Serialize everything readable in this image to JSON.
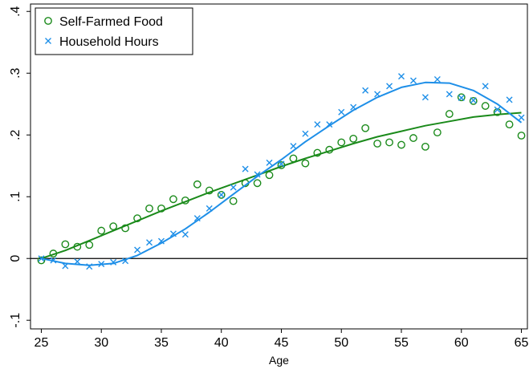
{
  "chart_data": {
    "type": "scatter",
    "x_label": "Age",
    "x": [
      25,
      26,
      27,
      28,
      29,
      30,
      31,
      32,
      33,
      34,
      35,
      36,
      37,
      38,
      39,
      40,
      41,
      42,
      43,
      44,
      45,
      46,
      47,
      48,
      49,
      50,
      51,
      52,
      53,
      54,
      55,
      56,
      57,
      58,
      59,
      60,
      61,
      62,
      63,
      64,
      65
    ],
    "fit_x": [
      25,
      27,
      29,
      31,
      33,
      35,
      37,
      39,
      41,
      43,
      45,
      47,
      49,
      51,
      53,
      55,
      57,
      59,
      61,
      63,
      65
    ],
    "series": [
      {
        "name": "Self-Farmed Food",
        "color": "#1a8a1a",
        "marker": "circle",
        "values": [
          -0.003,
          0.008,
          0.023,
          0.019,
          0.022,
          0.045,
          0.052,
          0.049,
          0.065,
          0.081,
          0.081,
          0.096,
          0.094,
          0.12,
          0.11,
          0.103,
          0.093,
          0.122,
          0.122,
          0.135,
          0.151,
          0.162,
          0.154,
          0.171,
          0.176,
          0.188,
          0.194,
          0.211,
          0.186,
          0.188,
          0.184,
          0.195,
          0.181,
          0.204,
          0.234,
          0.261,
          0.255,
          0.247,
          0.237,
          0.217,
          0.199
        ],
        "fit": [
          0,
          0.013,
          0.029,
          0.045,
          0.061,
          0.077,
          0.092,
          0.107,
          0.121,
          0.135,
          0.149,
          0.162,
          0.174,
          0.186,
          0.197,
          0.206,
          0.215,
          0.222,
          0.229,
          0.233,
          0.236
        ]
      },
      {
        "name": "Household Hours",
        "color": "#1e8fe8",
        "marker": "x",
        "values": [
          0,
          -0.003,
          -0.012,
          -0.005,
          -0.013,
          -0.009,
          -0.006,
          -0.004,
          0.014,
          0.026,
          0.028,
          0.04,
          0.039,
          0.065,
          0.081,
          0.103,
          0.115,
          0.145,
          0.136,
          0.155,
          0.153,
          0.182,
          0.202,
          0.217,
          0.217,
          0.237,
          0.245,
          0.272,
          0.266,
          0.279,
          0.295,
          0.288,
          0.261,
          0.29,
          0.266,
          0.26,
          0.256,
          0.279,
          0.241,
          0.257,
          0.228
        ],
        "fit": [
          0,
          -0.008,
          -0.011,
          -0.008,
          0.005,
          0.025,
          0.048,
          0.075,
          0.104,
          0.133,
          0.16,
          0.189,
          0.215,
          0.24,
          0.261,
          0.277,
          0.285,
          0.284,
          0.272,
          0.25,
          0.22
        ]
      }
    ],
    "xlim": [
      24.1,
      65.5
    ],
    "xticks": [
      25,
      30,
      35,
      40,
      45,
      50,
      55,
      60,
      65
    ],
    "ylim": [
      -0.114,
      0.412
    ],
    "yticks": [
      {
        "value": -0.1,
        "label": "-.1"
      },
      0,
      {
        "value": 0.1,
        "label": ".1"
      },
      {
        "value": 0.2,
        "label": ".2"
      },
      {
        "value": 0.3,
        "label": ".3"
      },
      {
        "value": 0.4,
        "label": ".4"
      }
    ],
    "yline": 0,
    "legend": "top-left"
  }
}
